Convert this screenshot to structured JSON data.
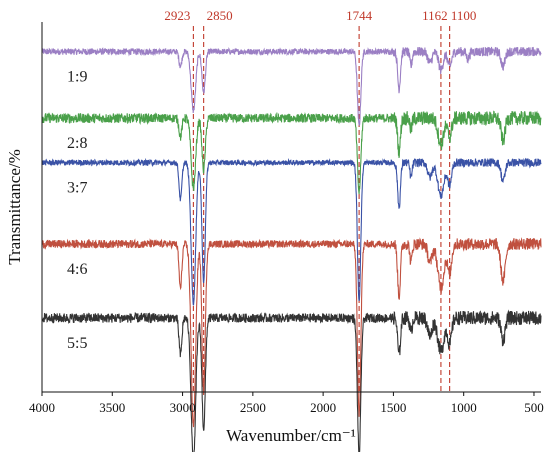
{
  "chart_data": {
    "type": "line",
    "xlabel": "Wavenumber/cm⁻¹",
    "ylabel": "Transmittance/%",
    "xlim": [
      4000,
      450
    ],
    "x_reversed": true,
    "x_ticks": [
      4000,
      3500,
      3000,
      2500,
      2000,
      1500,
      1000,
      500
    ],
    "y_ticks": [],
    "grid": false,
    "legend": "none",
    "reference_lines": [
      {
        "x": 2923,
        "label": "2923",
        "color": "#c0392b",
        "style": "dashed"
      },
      {
        "x": 2850,
        "label": "2850",
        "color": "#c0392b",
        "style": "dashed"
      },
      {
        "x": 1744,
        "label": "1744",
        "color": "#c0392b",
        "style": "dashed"
      },
      {
        "x": 1162,
        "label": "1162",
        "color": "#c0392b",
        "style": "dashed"
      },
      {
        "x": 1100,
        "label": "1100",
        "color": "#c0392b",
        "style": "dashed"
      }
    ],
    "series": [
      {
        "name": "1:9",
        "color": "#9b7fc4",
        "baseline": 0.92,
        "noise": 0.008,
        "peaks": [
          {
            "x": 3015,
            "depth": 0.04,
            "width": 10
          },
          {
            "x": 2923,
            "depth": 0.16,
            "width": 16
          },
          {
            "x": 2850,
            "depth": 0.11,
            "width": 12
          },
          {
            "x": 1744,
            "depth": 0.2,
            "width": 12
          },
          {
            "x": 1460,
            "depth": 0.1,
            "width": 10
          },
          {
            "x": 1375,
            "depth": 0.04,
            "width": 8
          },
          {
            "x": 1240,
            "depth": 0.03,
            "width": 15
          },
          {
            "x": 1162,
            "depth": 0.05,
            "width": 16
          },
          {
            "x": 1100,
            "depth": 0.04,
            "width": 14
          },
          {
            "x": 970,
            "depth": 0.02,
            "width": 10
          },
          {
            "x": 720,
            "depth": 0.04,
            "width": 14
          }
        ]
      },
      {
        "name": "2:8",
        "color": "#4aa04a",
        "baseline": 0.74,
        "noise": 0.012,
        "peaks": [
          {
            "x": 3015,
            "depth": 0.05,
            "width": 10
          },
          {
            "x": 2923,
            "depth": 0.19,
            "width": 16
          },
          {
            "x": 2850,
            "depth": 0.14,
            "width": 12
          },
          {
            "x": 1744,
            "depth": 0.2,
            "width": 12
          },
          {
            "x": 1460,
            "depth": 0.09,
            "width": 10
          },
          {
            "x": 1375,
            "depth": 0.03,
            "width": 8
          },
          {
            "x": 1162,
            "depth": 0.07,
            "width": 20
          },
          {
            "x": 1100,
            "depth": 0.05,
            "width": 14
          },
          {
            "x": 720,
            "depth": 0.06,
            "width": 14
          }
        ]
      },
      {
        "name": "3:7",
        "color": "#3a52a6",
        "baseline": 0.62,
        "noise": 0.007,
        "peaks": [
          {
            "x": 3015,
            "depth": 0.1,
            "width": 10
          },
          {
            "x": 2923,
            "depth": 0.38,
            "width": 16
          },
          {
            "x": 2850,
            "depth": 0.32,
            "width": 12
          },
          {
            "x": 1744,
            "depth": 0.37,
            "width": 12
          },
          {
            "x": 1460,
            "depth": 0.12,
            "width": 10
          },
          {
            "x": 1375,
            "depth": 0.04,
            "width": 8
          },
          {
            "x": 1240,
            "depth": 0.04,
            "width": 15
          },
          {
            "x": 1162,
            "depth": 0.09,
            "width": 22
          },
          {
            "x": 1100,
            "depth": 0.06,
            "width": 14
          },
          {
            "x": 720,
            "depth": 0.05,
            "width": 14
          }
        ]
      },
      {
        "name": "4:6",
        "color": "#c0503f",
        "baseline": 0.4,
        "noise": 0.01,
        "peaks": [
          {
            "x": 3015,
            "depth": 0.12,
            "width": 10
          },
          {
            "x": 2923,
            "depth": 0.49,
            "width": 16
          },
          {
            "x": 2850,
            "depth": 0.4,
            "width": 12
          },
          {
            "x": 1744,
            "depth": 0.46,
            "width": 12
          },
          {
            "x": 1460,
            "depth": 0.14,
            "width": 10
          },
          {
            "x": 1375,
            "depth": 0.05,
            "width": 8
          },
          {
            "x": 1240,
            "depth": 0.05,
            "width": 15
          },
          {
            "x": 1162,
            "depth": 0.12,
            "width": 22
          },
          {
            "x": 1100,
            "depth": 0.08,
            "width": 14
          },
          {
            "x": 720,
            "depth": 0.1,
            "width": 16
          }
        ]
      },
      {
        "name": "5:5",
        "color": "#333333",
        "baseline": 0.2,
        "noise": 0.012,
        "peaks": [
          {
            "x": 3015,
            "depth": 0.1,
            "width": 10
          },
          {
            "x": 2923,
            "depth": 0.39,
            "width": 16
          },
          {
            "x": 2850,
            "depth": 0.3,
            "width": 12
          },
          {
            "x": 1744,
            "depth": 0.37,
            "width": 12
          },
          {
            "x": 1460,
            "depth": 0.1,
            "width": 10
          },
          {
            "x": 1375,
            "depth": 0.04,
            "width": 8
          },
          {
            "x": 1240,
            "depth": 0.05,
            "width": 15
          },
          {
            "x": 1162,
            "depth": 0.09,
            "width": 22
          },
          {
            "x": 1100,
            "depth": 0.07,
            "width": 14
          },
          {
            "x": 720,
            "depth": 0.06,
            "width": 14
          }
        ]
      }
    ]
  }
}
